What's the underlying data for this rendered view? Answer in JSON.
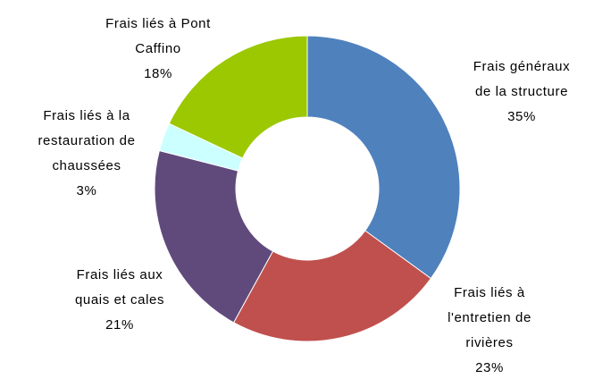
{
  "chart_data": {
    "type": "donut",
    "categories": [
      [
        "Frais généraux",
        "de la structure"
      ],
      [
        "Frais liés à",
        "l'entretien de",
        "rivières"
      ],
      [
        "Frais liés aux",
        "quais et cales"
      ],
      [
        "Frais liés à la",
        "restauration de",
        "chaussées"
      ],
      [
        "Frais liés à Pont",
        "Caffino"
      ]
    ],
    "values": [
      35,
      23,
      21,
      3,
      18
    ],
    "value_labels": [
      "35%",
      "23%",
      "21%",
      "3%",
      "18%"
    ],
    "colors": [
      "#4f81bd",
      "#c0504d",
      "#604a7b",
      "#ccffff",
      "#9bc800"
    ]
  }
}
